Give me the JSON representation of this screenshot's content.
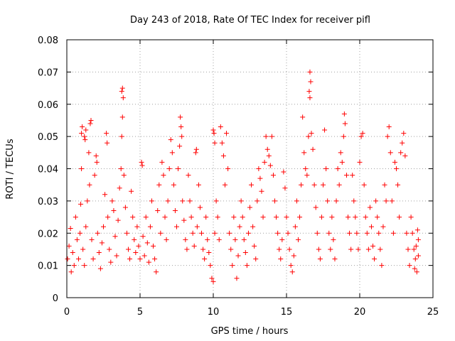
{
  "chart_data": {
    "type": "scatter",
    "title": "Day 243 of 2018, Rate Of TEC Index for receiver pifl",
    "xlabel": "GPS time / hours",
    "ylabel": "ROTI / TECUs",
    "xlim": [
      0,
      25
    ],
    "ylim": [
      0,
      0.08
    ],
    "xticks": [
      0,
      5,
      10,
      15,
      20,
      25
    ],
    "yticks": [
      0,
      0.01,
      0.02,
      0.03,
      0.04,
      0.05,
      0.06,
      0.07,
      0.08
    ],
    "xtick_labels": [
      "0",
      "5",
      "10",
      "15",
      "20",
      "25"
    ],
    "ytick_labels": [
      "0",
      "0.01",
      "0.02",
      "0.03",
      "0.04",
      "0.05",
      "0.06",
      "0.07",
      "0.08"
    ],
    "grid": true,
    "marker": "+",
    "color": "#ff0000",
    "series": [
      {
        "name": "ROTI",
        "points": [
          [
            0.05,
            0.012
          ],
          [
            0.15,
            0.016
          ],
          [
            0.25,
            0.0215
          ],
          [
            0.3,
            0.008
          ],
          [
            0.4,
            0.014
          ],
          [
            0.5,
            0.01
          ],
          [
            0.6,
            0.025
          ],
          [
            0.7,
            0.018
          ],
          [
            0.8,
            0.012
          ],
          [
            0.9,
            0.02
          ],
          [
            0.95,
            0.029
          ],
          [
            1.0,
            0.04
          ],
          [
            1.0,
            0.051
          ],
          [
            1.05,
            0.053
          ],
          [
            1.1,
            0.015
          ],
          [
            1.2,
            0.01
          ],
          [
            1.3,
            0.022
          ],
          [
            1.4,
            0.03
          ],
          [
            1.5,
            0.045
          ],
          [
            1.55,
            0.035
          ],
          [
            1.2,
            0.05
          ],
          [
            1.25,
            0.049
          ],
          [
            1.3,
            0.052
          ],
          [
            1.6,
            0.054
          ],
          [
            1.65,
            0.055
          ],
          [
            1.7,
            0.018
          ],
          [
            1.8,
            0.012
          ],
          [
            1.9,
            0.038
          ],
          [
            2.0,
            0.044
          ],
          [
            2.05,
            0.042
          ],
          [
            2.1,
            0.02
          ],
          [
            2.2,
            0.014
          ],
          [
            2.3,
            0.009
          ],
          [
            2.4,
            0.017
          ],
          [
            2.5,
            0.022
          ],
          [
            2.6,
            0.032
          ],
          [
            2.7,
            0.051
          ],
          [
            2.75,
            0.048
          ],
          [
            2.8,
            0.025
          ],
          [
            2.9,
            0.015
          ],
          [
            3.0,
            0.011
          ],
          [
            3.1,
            0.03
          ],
          [
            3.2,
            0.027
          ],
          [
            3.3,
            0.019
          ],
          [
            3.4,
            0.013
          ],
          [
            3.5,
            0.024
          ],
          [
            3.6,
            0.034
          ],
          [
            3.7,
            0.04
          ],
          [
            3.75,
            0.05
          ],
          [
            3.8,
            0.056
          ],
          [
            3.75,
            0.064
          ],
          [
            3.8,
            0.065
          ],
          [
            3.85,
            0.062
          ],
          [
            3.9,
            0.038
          ],
          [
            4.0,
            0.028
          ],
          [
            4.1,
            0.02
          ],
          [
            4.2,
            0.015
          ],
          [
            4.3,
            0.012
          ],
          [
            4.4,
            0.033
          ],
          [
            4.5,
            0.025
          ],
          [
            4.6,
            0.018
          ],
          [
            4.7,
            0.014
          ],
          [
            4.8,
            0.022
          ],
          [
            4.9,
            0.016
          ],
          [
            5.0,
            0.012
          ],
          [
            5.1,
            0.042
          ],
          [
            5.15,
            0.041
          ],
          [
            5.2,
            0.019
          ],
          [
            5.3,
            0.013
          ],
          [
            5.4,
            0.025
          ],
          [
            5.5,
            0.017
          ],
          [
            5.6,
            0.011
          ],
          [
            5.7,
            0.022
          ],
          [
            5.8,
            0.03
          ],
          [
            5.9,
            0.016
          ],
          [
            6.0,
            0.012
          ],
          [
            6.1,
            0.008
          ],
          [
            6.2,
            0.027
          ],
          [
            6.3,
            0.035
          ],
          [
            6.4,
            0.02
          ],
          [
            6.5,
            0.042
          ],
          [
            6.6,
            0.038
          ],
          [
            6.7,
            0.025
          ],
          [
            6.8,
            0.018
          ],
          [
            6.9,
            0.03
          ],
          [
            7.0,
            0.04
          ],
          [
            7.1,
            0.049
          ],
          [
            7.2,
            0.045
          ],
          [
            7.3,
            0.035
          ],
          [
            7.4,
            0.027
          ],
          [
            7.5,
            0.022
          ],
          [
            7.6,
            0.04
          ],
          [
            7.7,
            0.047
          ],
          [
            7.75,
            0.056
          ],
          [
            7.8,
            0.053
          ],
          [
            7.85,
            0.05
          ],
          [
            7.9,
            0.03
          ],
          [
            8.0,
            0.024
          ],
          [
            8.1,
            0.018
          ],
          [
            8.2,
            0.015
          ],
          [
            8.3,
            0.038
          ],
          [
            8.4,
            0.03
          ],
          [
            8.5,
            0.025
          ],
          [
            8.6,
            0.02
          ],
          [
            8.7,
            0.016
          ],
          [
            8.8,
            0.045
          ],
          [
            8.85,
            0.046
          ],
          [
            8.9,
            0.022
          ],
          [
            9.0,
            0.035
          ],
          [
            9.1,
            0.028
          ],
          [
            9.2,
            0.02
          ],
          [
            9.3,
            0.015
          ],
          [
            9.4,
            0.012
          ],
          [
            9.5,
            0.025
          ],
          [
            9.6,
            0.018
          ],
          [
            9.7,
            0.014
          ],
          [
            9.8,
            0.01
          ],
          [
            9.9,
            0.006
          ],
          [
            10.0,
            0.005
          ],
          [
            10.1,
            0.02
          ],
          [
            10.0,
            0.052
          ],
          [
            10.05,
            0.051
          ],
          [
            10.1,
            0.048
          ],
          [
            10.2,
            0.03
          ],
          [
            10.3,
            0.025
          ],
          [
            10.4,
            0.018
          ],
          [
            10.5,
            0.053
          ],
          [
            10.6,
            0.048
          ],
          [
            10.7,
            0.044
          ],
          [
            10.8,
            0.035
          ],
          [
            10.9,
            0.051
          ],
          [
            11.0,
            0.04
          ],
          [
            11.1,
            0.02
          ],
          [
            11.2,
            0.015
          ],
          [
            11.3,
            0.01
          ],
          [
            11.4,
            0.025
          ],
          [
            11.5,
            0.018
          ],
          [
            11.6,
            0.006
          ],
          [
            11.7,
            0.013
          ],
          [
            11.8,
            0.022
          ],
          [
            11.9,
            0.03
          ],
          [
            12.0,
            0.025
          ],
          [
            12.1,
            0.018
          ],
          [
            12.2,
            0.014
          ],
          [
            12.3,
            0.01
          ],
          [
            12.4,
            0.02
          ],
          [
            12.5,
            0.028
          ],
          [
            12.6,
            0.035
          ],
          [
            12.7,
            0.022
          ],
          [
            12.8,
            0.016
          ],
          [
            12.9,
            0.012
          ],
          [
            13.0,
            0.03
          ],
          [
            13.1,
            0.04
          ],
          [
            13.2,
            0.037
          ],
          [
            13.3,
            0.033
          ],
          [
            13.4,
            0.025
          ],
          [
            13.5,
            0.042
          ],
          [
            13.6,
            0.05
          ],
          [
            13.7,
            0.046
          ],
          [
            13.8,
            0.044
          ],
          [
            13.9,
            0.041
          ],
          [
            14.0,
            0.05
          ],
          [
            14.1,
            0.038
          ],
          [
            14.2,
            0.03
          ],
          [
            14.3,
            0.025
          ],
          [
            14.4,
            0.02
          ],
          [
            14.5,
            0.015
          ],
          [
            14.6,
            0.012
          ],
          [
            14.7,
            0.018
          ],
          [
            14.8,
            0.039
          ],
          [
            14.9,
            0.034
          ],
          [
            15.0,
            0.025
          ],
          [
            15.1,
            0.02
          ],
          [
            15.2,
            0.015
          ],
          [
            15.3,
            0.01
          ],
          [
            15.4,
            0.008
          ],
          [
            15.5,
            0.013
          ],
          [
            15.6,
            0.022
          ],
          [
            15.7,
            0.03
          ],
          [
            15.8,
            0.018
          ],
          [
            15.9,
            0.025
          ],
          [
            16.0,
            0.035
          ],
          [
            16.1,
            0.056
          ],
          [
            16.2,
            0.045
          ],
          [
            16.3,
            0.04
          ],
          [
            16.4,
            0.038
          ],
          [
            16.5,
            0.05
          ],
          [
            16.55,
            0.064
          ],
          [
            16.6,
            0.07
          ],
          [
            16.65,
            0.067
          ],
          [
            16.6,
            0.062
          ],
          [
            16.7,
            0.051
          ],
          [
            16.8,
            0.046
          ],
          [
            16.9,
            0.035
          ],
          [
            17.0,
            0.028
          ],
          [
            17.1,
            0.02
          ],
          [
            17.2,
            0.015
          ],
          [
            17.3,
            0.012
          ],
          [
            17.4,
            0.025
          ],
          [
            17.5,
            0.035
          ],
          [
            17.6,
            0.052
          ],
          [
            17.7,
            0.04
          ],
          [
            17.8,
            0.03
          ],
          [
            17.9,
            0.02
          ],
          [
            18.0,
            0.015
          ],
          [
            18.1,
            0.025
          ],
          [
            18.2,
            0.018
          ],
          [
            18.3,
            0.012
          ],
          [
            18.4,
            0.03
          ],
          [
            18.5,
            0.04
          ],
          [
            18.6,
            0.035
          ],
          [
            18.7,
            0.045
          ],
          [
            18.8,
            0.042
          ],
          [
            18.9,
            0.05
          ],
          [
            18.95,
            0.057
          ],
          [
            19.0,
            0.054
          ],
          [
            19.1,
            0.038
          ],
          [
            19.2,
            0.025
          ],
          [
            19.3,
            0.02
          ],
          [
            19.4,
            0.015
          ],
          [
            19.5,
            0.038
          ],
          [
            19.6,
            0.03
          ],
          [
            19.7,
            0.025
          ],
          [
            19.8,
            0.02
          ],
          [
            19.9,
            0.015
          ],
          [
            20.0,
            0.042
          ],
          [
            20.1,
            0.05
          ],
          [
            20.2,
            0.051
          ],
          [
            20.3,
            0.035
          ],
          [
            20.4,
            0.025
          ],
          [
            20.5,
            0.02
          ],
          [
            20.6,
            0.015
          ],
          [
            20.7,
            0.028
          ],
          [
            20.8,
            0.022
          ],
          [
            20.9,
            0.016
          ],
          [
            21.0,
            0.012
          ],
          [
            21.1,
            0.03
          ],
          [
            21.2,
            0.025
          ],
          [
            21.3,
            0.02
          ],
          [
            21.4,
            0.015
          ],
          [
            21.5,
            0.01
          ],
          [
            21.6,
            0.022
          ],
          [
            21.7,
            0.035
          ],
          [
            21.8,
            0.03
          ],
          [
            21.9,
            0.05
          ],
          [
            22.0,
            0.053
          ],
          [
            22.1,
            0.045
          ],
          [
            22.2,
            0.03
          ],
          [
            22.3,
            0.02
          ],
          [
            22.4,
            0.042
          ],
          [
            22.5,
            0.04
          ],
          [
            22.6,
            0.035
          ],
          [
            22.7,
            0.025
          ],
          [
            22.8,
            0.045
          ],
          [
            22.9,
            0.048
          ],
          [
            23.0,
            0.051
          ],
          [
            23.1,
            0.044
          ],
          [
            23.2,
            0.02
          ],
          [
            23.3,
            0.015
          ],
          [
            23.4,
            0.01
          ],
          [
            23.5,
            0.025
          ],
          [
            23.6,
            0.02
          ],
          [
            23.7,
            0.015
          ],
          [
            23.8,
            0.012
          ],
          [
            23.9,
            0.008
          ],
          [
            24.0,
            0.018
          ],
          [
            24.0,
            0.013
          ],
          [
            23.95,
            0.021
          ],
          [
            23.85,
            0.016
          ],
          [
            23.75,
            0.009
          ]
        ]
      }
    ]
  }
}
